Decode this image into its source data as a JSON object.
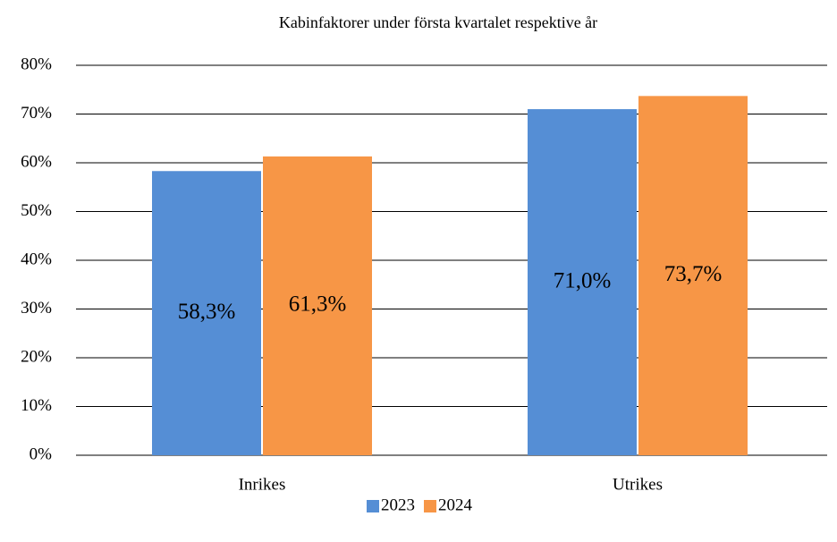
{
  "chart_data": {
    "type": "bar",
    "title": "Kabinfaktorer under första kvartalet respektive år",
    "categories": [
      "Inrikes",
      "Utrikes"
    ],
    "series": [
      {
        "name": "2023",
        "color": "#558ed5",
        "values": [
          58.3,
          71.0
        ],
        "value_labels": [
          "58,3%",
          "71,0%"
        ]
      },
      {
        "name": "2024",
        "color": "#f79646",
        "values": [
          61.3,
          73.7
        ],
        "value_labels": [
          "61,3%",
          "73,7%"
        ]
      }
    ],
    "ylim": [
      0,
      80
    ],
    "yticks": [
      {
        "value": 0,
        "label": "0%"
      },
      {
        "value": 10,
        "label": "10%"
      },
      {
        "value": 20,
        "label": "20%"
      },
      {
        "value": 30,
        "label": "30%"
      },
      {
        "value": 40,
        "label": "40%"
      },
      {
        "value": 50,
        "label": "50%"
      },
      {
        "value": 60,
        "label": "60%"
      },
      {
        "value": 70,
        "label": "70%"
      },
      {
        "value": 80,
        "label": "80%"
      }
    ],
    "grid": true,
    "legend": "bottom"
  }
}
